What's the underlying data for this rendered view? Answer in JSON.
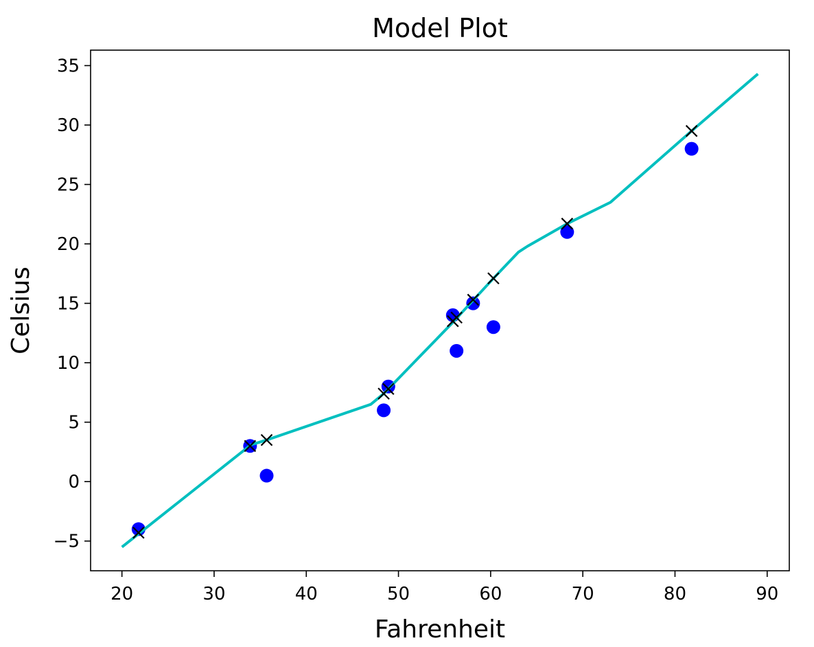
{
  "chart_data": {
    "type": "scatter",
    "title": "Model Plot",
    "xlabel": "Fahrenheit",
    "ylabel": "Celsius",
    "xlim": [
      16.6,
      92.4
    ],
    "ylim": [
      -7.5,
      36.3
    ],
    "xticks": [
      20,
      30,
      40,
      50,
      60,
      70,
      80,
      90
    ],
    "yticks": [
      -5,
      0,
      5,
      10,
      15,
      20,
      25,
      30,
      35
    ],
    "xtick_labels": [
      "20",
      "30",
      "40",
      "50",
      "60",
      "70",
      "80",
      "90"
    ],
    "ytick_labels": [
      "−5",
      "0",
      "5",
      "10",
      "15",
      "20",
      "25",
      "30",
      "35"
    ],
    "grid": false,
    "series": [
      {
        "kind": "scatter",
        "marker": "circle",
        "color": "#0000ff",
        "points": [
          {
            "x": 21.8,
            "y": -4.0
          },
          {
            "x": 33.9,
            "y": 3.0
          },
          {
            "x": 35.7,
            "y": 0.5
          },
          {
            "x": 48.4,
            "y": 6.0
          },
          {
            "x": 48.9,
            "y": 8.0
          },
          {
            "x": 55.9,
            "y": 14.0
          },
          {
            "x": 56.3,
            "y": 11.0
          },
          {
            "x": 58.1,
            "y": 15.0
          },
          {
            "x": 60.3,
            "y": 13.0
          },
          {
            "x": 68.3,
            "y": 21.0
          },
          {
            "x": 81.8,
            "y": 28.0
          }
        ]
      },
      {
        "kind": "scatter",
        "marker": "x",
        "color": "#000000",
        "points": [
          {
            "x": 21.8,
            "y": -4.3
          },
          {
            "x": 33.9,
            "y": 3.0
          },
          {
            "x": 35.7,
            "y": 3.5
          },
          {
            "x": 48.4,
            "y": 7.4
          },
          {
            "x": 48.9,
            "y": 7.8
          },
          {
            "x": 55.9,
            "y": 13.5
          },
          {
            "x": 56.3,
            "y": 13.8
          },
          {
            "x": 58.1,
            "y": 15.3
          },
          {
            "x": 60.3,
            "y": 17.1
          },
          {
            "x": 68.3,
            "y": 21.7
          },
          {
            "x": 81.8,
            "y": 29.5
          }
        ]
      },
      {
        "kind": "line",
        "color": "#00bfbf",
        "points": [
          {
            "x": 20.0,
            "y": -5.5
          },
          {
            "x": 34.0,
            "y": 3.1
          },
          {
            "x": 35.7,
            "y": 3.5
          },
          {
            "x": 47.0,
            "y": 6.5
          },
          {
            "x": 48.4,
            "y": 7.4
          },
          {
            "x": 55.9,
            "y": 13.4
          },
          {
            "x": 60.3,
            "y": 17.1
          },
          {
            "x": 63.0,
            "y": 19.3
          },
          {
            "x": 64.0,
            "y": 19.8
          },
          {
            "x": 68.3,
            "y": 21.7
          },
          {
            "x": 73.0,
            "y": 23.5
          },
          {
            "x": 81.8,
            "y": 29.5
          },
          {
            "x": 89.0,
            "y": 34.3
          }
        ]
      }
    ]
  }
}
